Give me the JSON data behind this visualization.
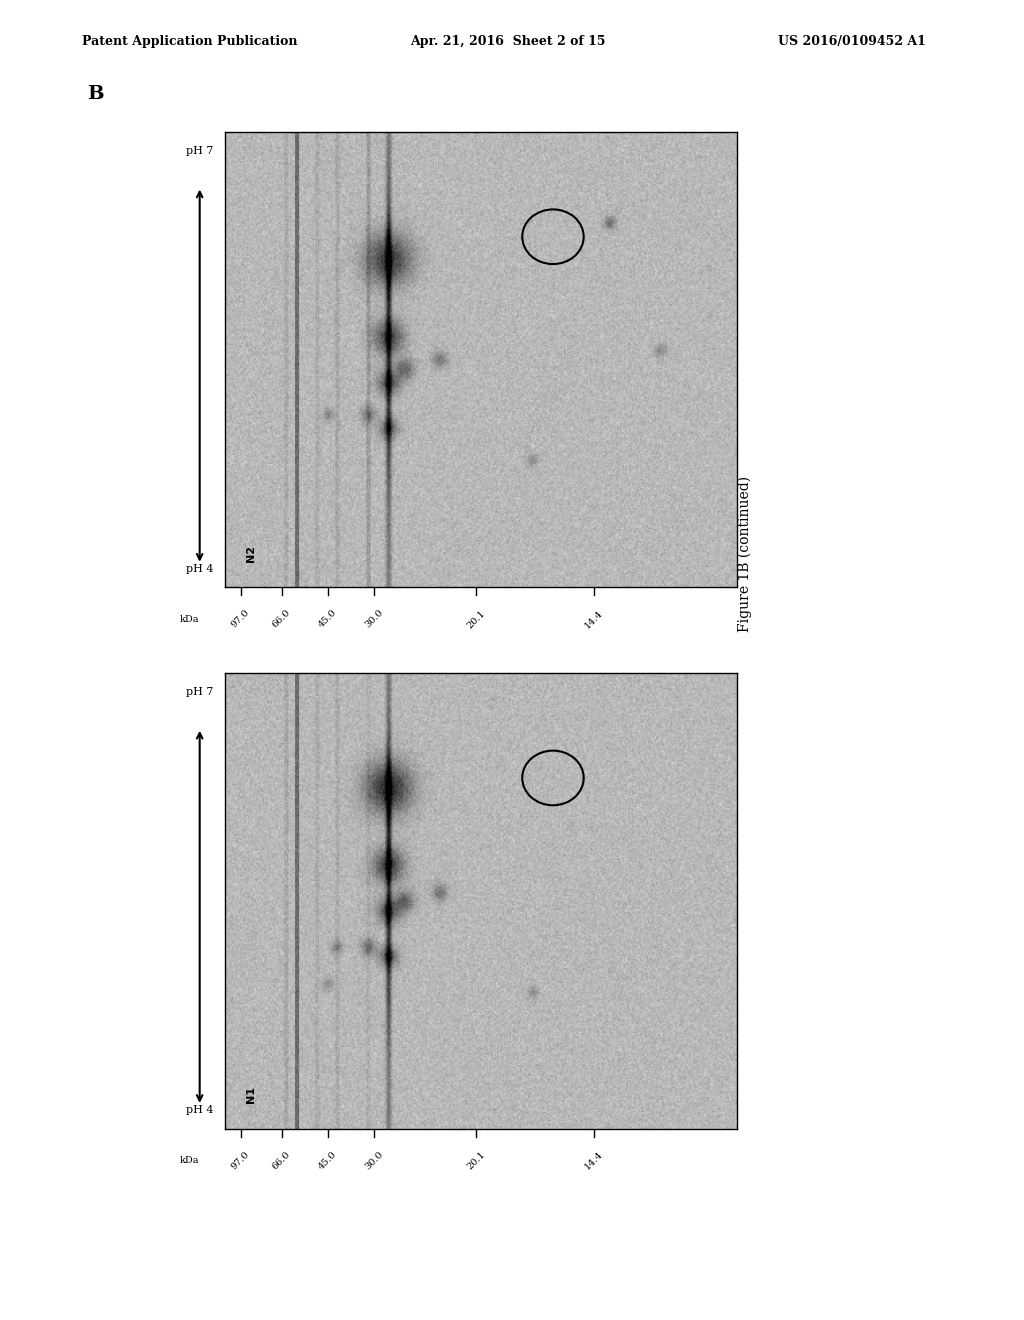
{
  "header_left": "Patent Application Publication",
  "header_center": "Apr. 21, 2016  Sheet 2 of 15",
  "header_right": "US 2016/0109452 A1",
  "panel_label": "B",
  "figure_caption": "Figure 1B (continued)",
  "top_panel_label": "N2",
  "bottom_panel_label": "N1",
  "kda_labels": [
    "97.0",
    "66.0",
    "45.0",
    "30.0",
    "20.1",
    "14.4"
  ],
  "ph_label_top": "pH 7",
  "ph_label_bottom": "pH 4",
  "bg_color": "#c8c8c8",
  "image_bg": "#b8b8b8"
}
